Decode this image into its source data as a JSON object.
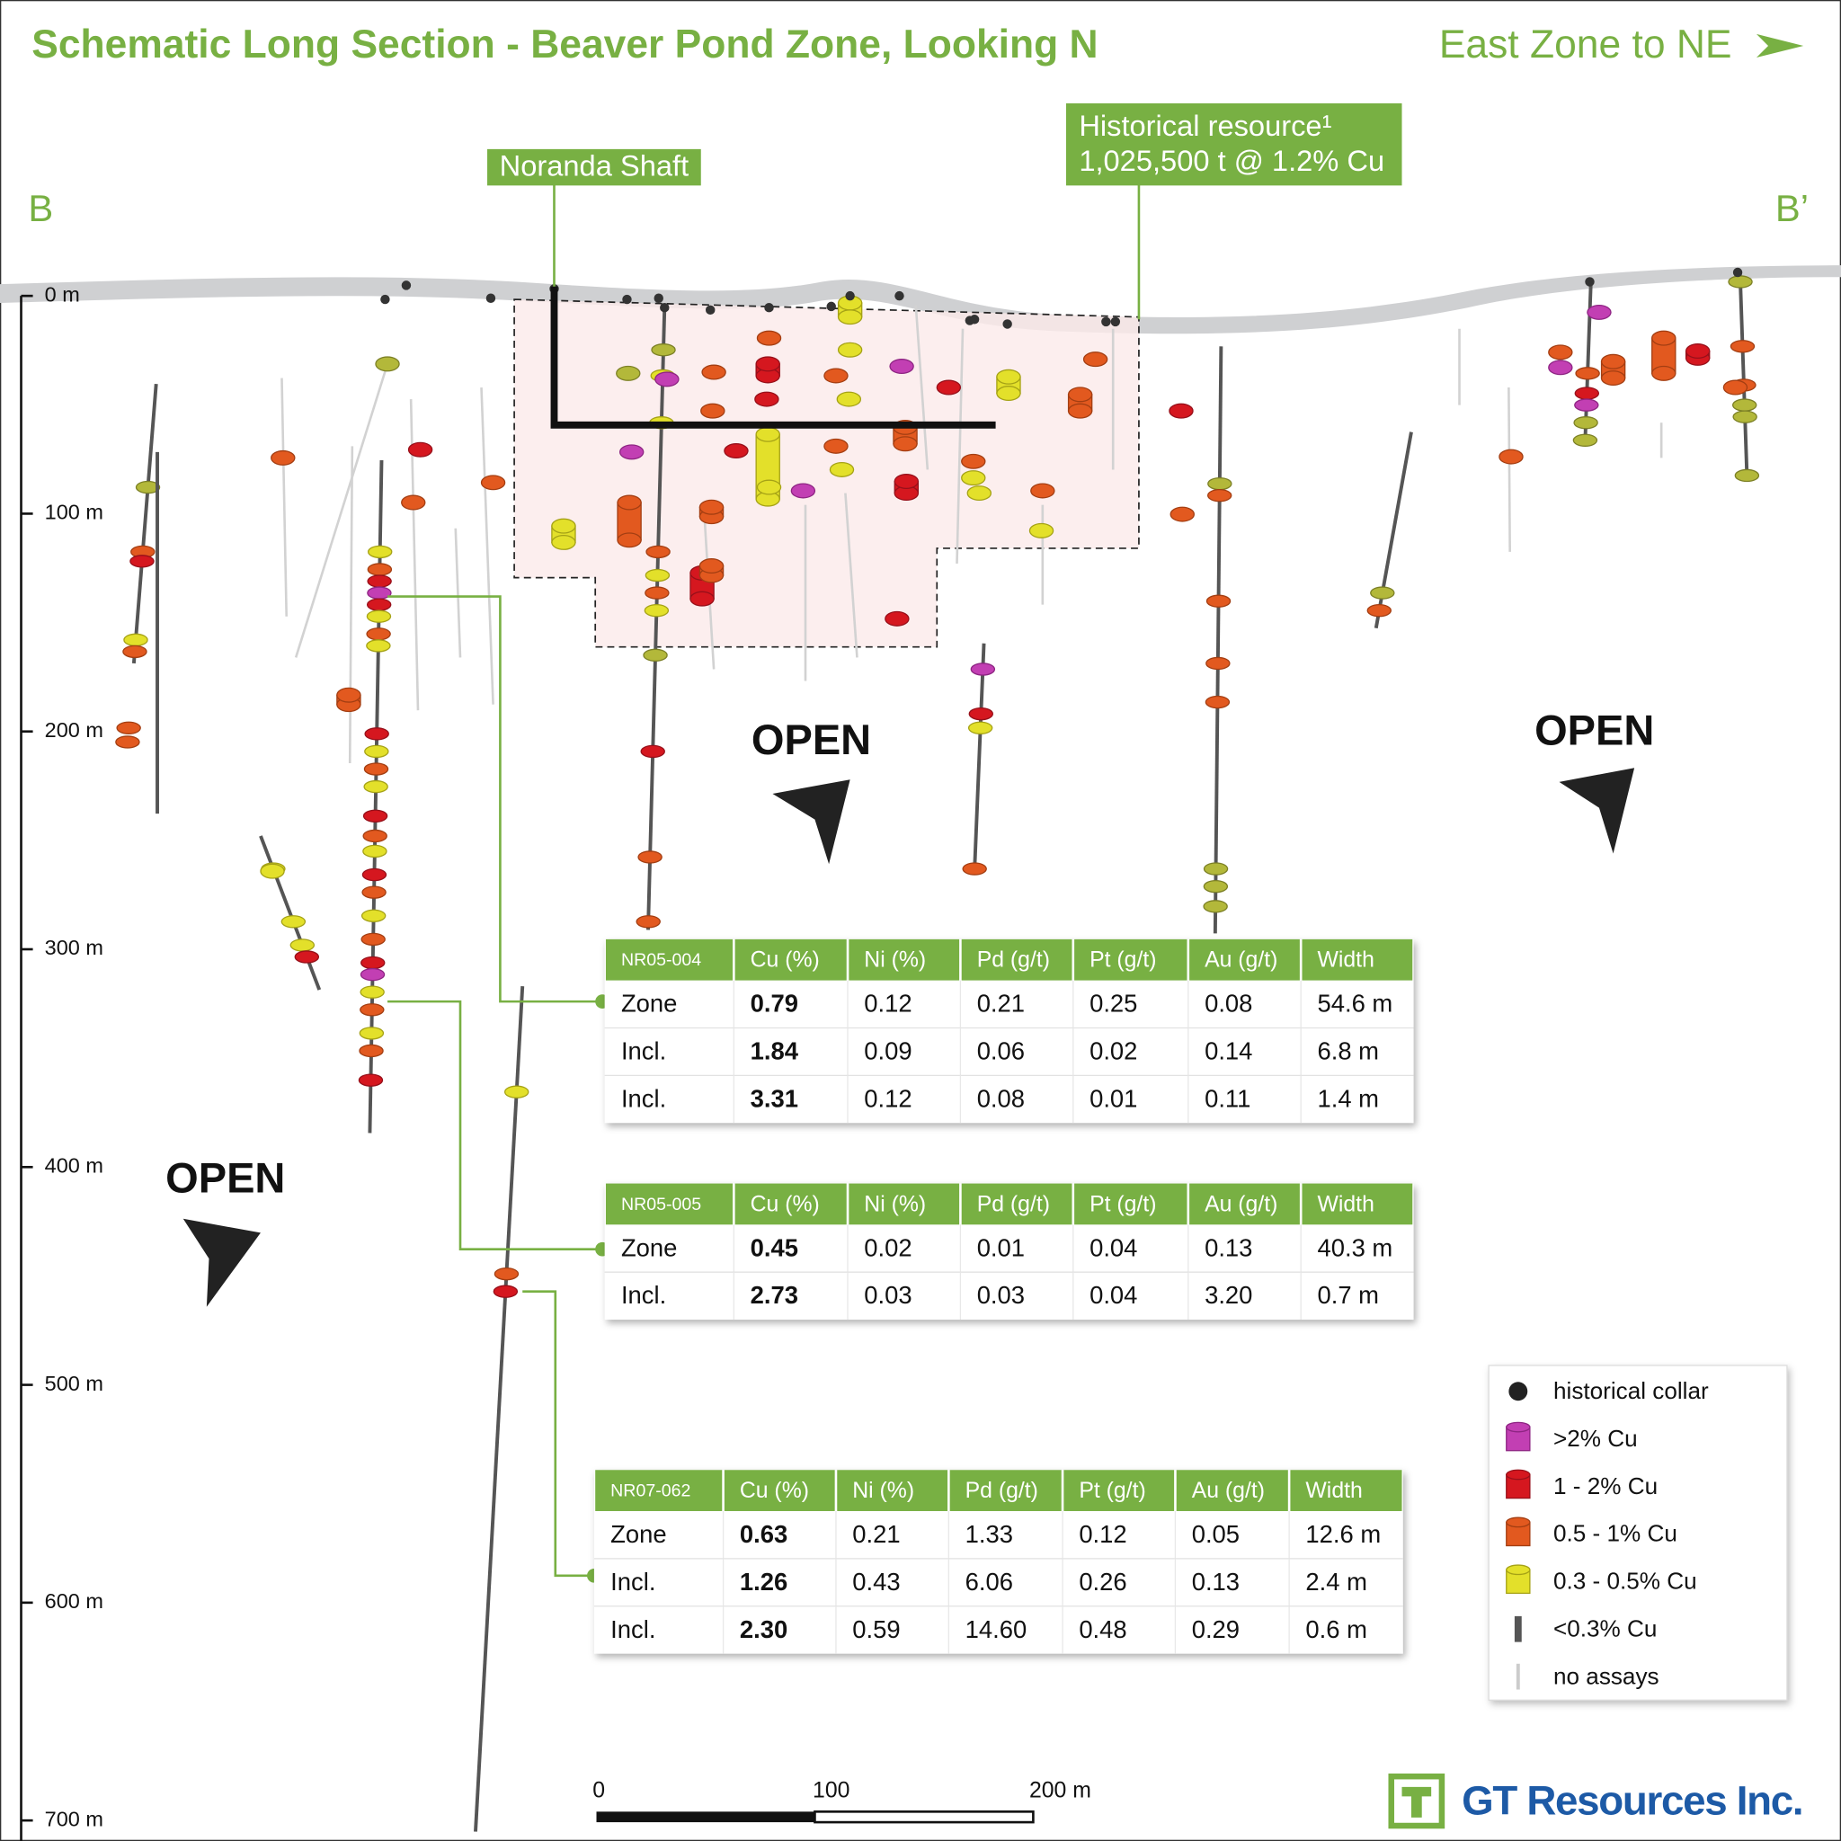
{
  "title": "Schematic Long Section - Beaver Pond Zone, Looking N",
  "direction": "East Zone to NE",
  "section_labels": [
    "B",
    "B’"
  ],
  "depth_axis": [
    "0 m",
    "100 m",
    "200 m",
    "300 m",
    "400 m",
    "500 m",
    "600 m",
    "700 m"
  ],
  "callouts": {
    "shaft": "Noranda Shaft",
    "resource": [
      "Historical resource¹",
      "1,025,500 t @ 1.2% Cu"
    ]
  },
  "open_labels": [
    "OPEN",
    "OPEN",
    "OPEN"
  ],
  "tables": [
    {
      "header": [
        "NR05-004",
        "Cu (%)",
        "Ni (%)",
        "Pd (g/t)",
        "Pt (g/t)",
        "Au (g/t)",
        "Width"
      ],
      "rows": [
        [
          "Zone",
          "0.79",
          "0.12",
          "0.21",
          "0.25",
          "0.08",
          "54.6 m"
        ],
        [
          "Incl.",
          "1.84",
          "0.09",
          "0.06",
          "0.02",
          "0.14",
          "6.8 m"
        ],
        [
          "Incl.",
          "3.31",
          "0.12",
          "0.08",
          "0.01",
          "0.11",
          "1.4 m"
        ]
      ]
    },
    {
      "header": [
        "NR05-005",
        "Cu (%)",
        "Ni (%)",
        "Pd (g/t)",
        "Pt (g/t)",
        "Au (g/t)",
        "Width"
      ],
      "rows": [
        [
          "Zone",
          "0.45",
          "0.02",
          "0.01",
          "0.04",
          "0.13",
          "40.3 m"
        ],
        [
          "Incl.",
          "2.73",
          "0.03",
          "0.03",
          "0.04",
          "3.20",
          "0.7 m"
        ]
      ]
    },
    {
      "header": [
        "NR07-062",
        "Cu (%)",
        "Ni (%)",
        "Pd (g/t)",
        "Pt (g/t)",
        "Au (g/t)",
        "Width"
      ],
      "rows": [
        [
          "Zone",
          "0.63",
          "0.21",
          "1.33",
          "0.12",
          "0.05",
          "12.6 m"
        ],
        [
          "Incl.",
          "1.26",
          "0.43",
          "6.06",
          "0.26",
          "0.13",
          "2.4 m"
        ],
        [
          "Incl.",
          "2.30",
          "0.59",
          "14.60",
          "0.48",
          "0.29",
          "0.6 m"
        ]
      ]
    }
  ],
  "legend": [
    "historical collar",
    ">2% Cu",
    "1 - 2% Cu",
    "0.5 - 1% Cu",
    "0.3 - 0.5% Cu",
    "<0.3% Cu",
    "no assays"
  ],
  "scale_bar": [
    "0",
    "100",
    "200 m"
  ],
  "logo": "GT Resources Inc."
}
